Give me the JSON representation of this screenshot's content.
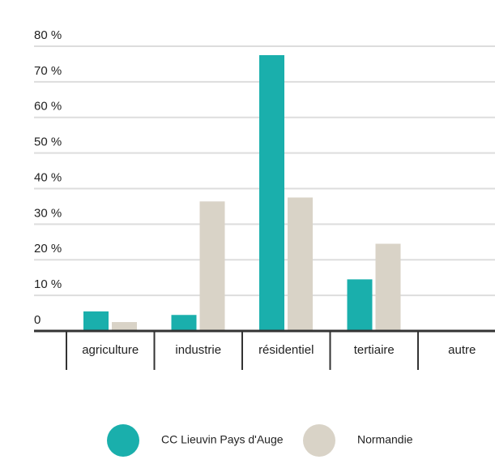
{
  "chart_data": {
    "type": "bar",
    "categories": [
      "agriculture",
      "industrie",
      "résidentiel",
      "tertiaire",
      "autre"
    ],
    "series": [
      {
        "name": "CC Lieuvin Pays d'Auge",
        "color": "#1aafac",
        "values": [
          5.5,
          4.5,
          77.5,
          14.5,
          0
        ]
      },
      {
        "name": "Normandie",
        "color": "#d9d3c7",
        "values": [
          2.5,
          36.4,
          37.5,
          24.5,
          0
        ]
      }
    ],
    "ylim": [
      0,
      80
    ],
    "yticks": [
      0,
      {
        "value": 10,
        "label": "10 %"
      },
      {
        "value": 20,
        "label": "20 %"
      },
      {
        "value": 30,
        "label": "30 %"
      },
      {
        "value": 40,
        "label": "40 %"
      },
      {
        "value": 50,
        "label": "50 %"
      },
      {
        "value": 60,
        "label": "60 %"
      },
      {
        "value": 70,
        "label": "70 %"
      },
      {
        "value": 80,
        "label": "80 %"
      }
    ],
    "grid": true
  }
}
